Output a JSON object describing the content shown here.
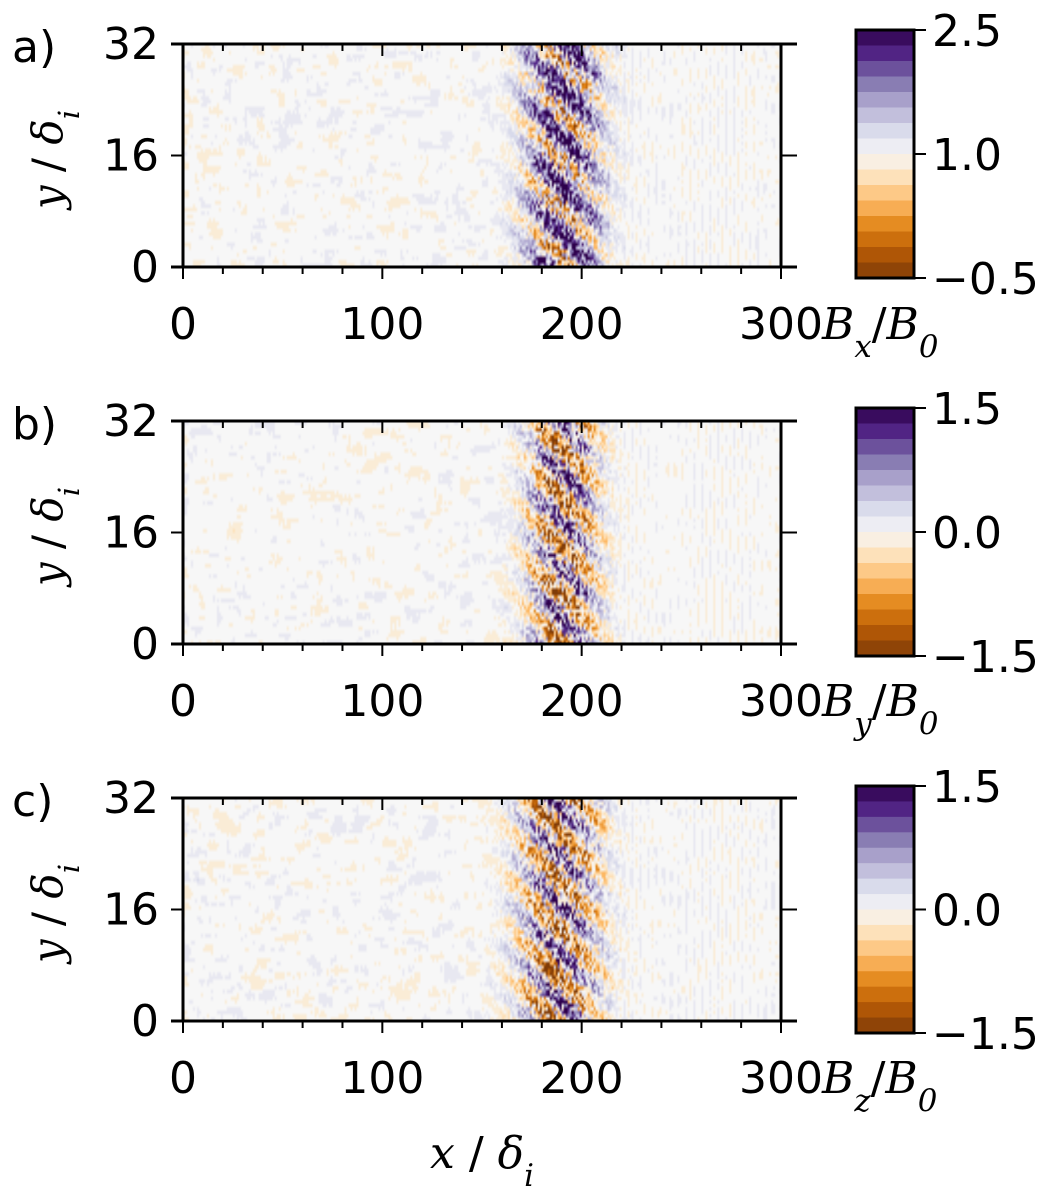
{
  "chart_data": [
    {
      "type": "heatmap",
      "panel_label": "a)",
      "xlim": [
        0,
        300
      ],
      "ylim": [
        0,
        32
      ],
      "x_ticks": [
        "0",
        "100",
        "200",
        "300"
      ],
      "y_ticks": [
        "0",
        "16",
        "32"
      ],
      "ylabel": {
        "var": "y",
        "sep": " / ",
        "unit": "δ",
        "sub": "i"
      },
      "colorbar": {
        "label": {
          "main": "B",
          "sub": "x",
          "den": "B",
          "den_sub": "0"
        },
        "ticks": [
          "2.5",
          "1.0",
          "−0.5"
        ],
        "range": [
          -0.5,
          2.5
        ],
        "mid": 1.0
      },
      "features": {
        "shock_center_x": 190,
        "shock_width": 28,
        "noise_level": 0.35
      }
    },
    {
      "type": "heatmap",
      "panel_label": "b)",
      "xlim": [
        0,
        300
      ],
      "ylim": [
        0,
        32
      ],
      "x_ticks": [
        "0",
        "100",
        "200",
        "300"
      ],
      "y_ticks": [
        "0",
        "16",
        "32"
      ],
      "ylabel": {
        "var": "y",
        "sep": " / ",
        "unit": "δ",
        "sub": "i"
      },
      "colorbar": {
        "label": {
          "main": "B",
          "sub": "y",
          "den": "B",
          "den_sub": "0"
        },
        "ticks": [
          "1.5",
          "0.0",
          "−1.5"
        ],
        "range": [
          -1.5,
          1.5
        ],
        "mid": 0.0
      },
      "features": {
        "shock_center_x": 190,
        "shock_width": 26,
        "noise_level": 0.3
      }
    },
    {
      "type": "heatmap",
      "panel_label": "c)",
      "xlim": [
        0,
        300
      ],
      "ylim": [
        0,
        32
      ],
      "x_ticks": [
        "0",
        "100",
        "200",
        "300"
      ],
      "y_ticks": [
        "0",
        "16",
        "32"
      ],
      "ylabel": {
        "var": "y",
        "sep": " / ",
        "unit": "δ",
        "sub": "i"
      },
      "colorbar": {
        "label": {
          "main": "B",
          "sub": "z",
          "den": "B",
          "den_sub": "0"
        },
        "ticks": [
          "1.5",
          "0.0",
          "−1.5"
        ],
        "range": [
          -1.5,
          1.5
        ],
        "mid": 0.0
      },
      "features": {
        "shock_center_x": 188,
        "shock_width": 30,
        "noise_level": 0.35
      }
    }
  ],
  "xlabel": {
    "var": "x",
    "sep": " / ",
    "unit": "δ",
    "sub": "i"
  },
  "colormap": {
    "stops": [
      "#7f3b08",
      "#b35806",
      "#e08214",
      "#fdb863",
      "#fee0b6",
      "#f7f7f7",
      "#d8daeb",
      "#b2abd2",
      "#8073ac",
      "#542788",
      "#2d004b"
    ]
  }
}
